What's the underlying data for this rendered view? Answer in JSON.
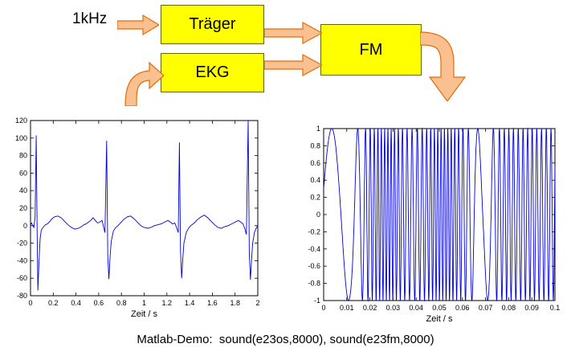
{
  "diagram": {
    "input_label": "1kHz",
    "blocks": [
      {
        "label": "Träger"
      },
      {
        "label": "EKG"
      },
      {
        "label": "FM"
      }
    ],
    "colors": {
      "block_fill": "#FFFF00",
      "block_border": "#666600",
      "arrow_fill": "#FAC090",
      "arrow_stroke": "#E46C0A"
    }
  },
  "caption": {
    "text": "Matlab-Demo:  sound(e23os,8000), sound(e23fm,8000)"
  },
  "chart_data": [
    {
      "type": "line",
      "name": "ekg-signal",
      "xlabel": "Zeit / s",
      "ylabel": "",
      "xlim": [
        0,
        2
      ],
      "ylim": [
        -80,
        120
      ],
      "xticks": [
        0,
        0.2,
        0.4,
        0.6,
        0.8,
        1,
        1.2,
        1.4,
        1.6,
        1.8,
        2
      ],
      "xtick_labels": [
        "0",
        "0.2",
        "0.4",
        "0.6",
        "0.8",
        "1",
        "1.2",
        "1.4",
        "1.6",
        "1.8",
        "2"
      ],
      "yticks": [
        -80,
        -60,
        -40,
        -20,
        0,
        20,
        40,
        60,
        80,
        100,
        120
      ],
      "ytick_labels": [
        "-80",
        "-60",
        "-40",
        "-20",
        "0",
        "20",
        "40",
        "60",
        "80",
        "100",
        "120"
      ],
      "grid": false,
      "line_color": "#0000D8",
      "points": [
        [
          0.0,
          1
        ],
        [
          0.01,
          3
        ],
        [
          0.02,
          0
        ],
        [
          0.03,
          -2
        ],
        [
          0.04,
          10
        ],
        [
          0.05,
          103
        ],
        [
          0.06,
          -30
        ],
        [
          0.065,
          -74
        ],
        [
          0.075,
          -40
        ],
        [
          0.085,
          -15
        ],
        [
          0.095,
          -5
        ],
        [
          0.11,
          -2
        ],
        [
          0.13,
          1
        ],
        [
          0.15,
          2
        ],
        [
          0.17,
          5
        ],
        [
          0.19,
          8
        ],
        [
          0.21,
          10
        ],
        [
          0.24,
          11
        ],
        [
          0.27,
          9
        ],
        [
          0.3,
          5
        ],
        [
          0.33,
          1
        ],
        [
          0.36,
          -2
        ],
        [
          0.39,
          -4
        ],
        [
          0.42,
          -3
        ],
        [
          0.45,
          -1
        ],
        [
          0.47,
          1
        ],
        [
          0.49,
          2
        ],
        [
          0.51,
          4
        ],
        [
          0.53,
          6
        ],
        [
          0.55,
          9
        ],
        [
          0.57,
          6
        ],
        [
          0.59,
          3
        ],
        [
          0.61,
          4
        ],
        [
          0.63,
          6
        ],
        [
          0.64,
          0
        ],
        [
          0.655,
          -8
        ],
        [
          0.67,
          97
        ],
        [
          0.68,
          -35
        ],
        [
          0.69,
          -61
        ],
        [
          0.7,
          -35
        ],
        [
          0.71,
          -18
        ],
        [
          0.73,
          -6
        ],
        [
          0.75,
          -2
        ],
        [
          0.77,
          0
        ],
        [
          0.79,
          3
        ],
        [
          0.82,
          7
        ],
        [
          0.85,
          10
        ],
        [
          0.88,
          11
        ],
        [
          0.91,
          8
        ],
        [
          0.94,
          4
        ],
        [
          0.97,
          0
        ],
        [
          1.0,
          -2
        ],
        [
          1.03,
          -3
        ],
        [
          1.06,
          -2
        ],
        [
          1.09,
          0
        ],
        [
          1.12,
          1
        ],
        [
          1.15,
          2
        ],
        [
          1.18,
          4
        ],
        [
          1.21,
          6
        ],
        [
          1.23,
          4
        ],
        [
          1.25,
          2
        ],
        [
          1.27,
          3
        ],
        [
          1.285,
          -2
        ],
        [
          1.3,
          -8
        ],
        [
          1.31,
          95
        ],
        [
          1.32,
          -30
        ],
        [
          1.33,
          -60
        ],
        [
          1.34,
          -38
        ],
        [
          1.35,
          -20
        ],
        [
          1.37,
          -8
        ],
        [
          1.39,
          -3
        ],
        [
          1.41,
          0
        ],
        [
          1.44,
          3
        ],
        [
          1.47,
          7
        ],
        [
          1.5,
          10
        ],
        [
          1.53,
          12
        ],
        [
          1.56,
          9
        ],
        [
          1.59,
          5
        ],
        [
          1.62,
          1
        ],
        [
          1.65,
          -2
        ],
        [
          1.68,
          -3
        ],
        [
          1.71,
          -1
        ],
        [
          1.74,
          0
        ],
        [
          1.77,
          2
        ],
        [
          1.8,
          4
        ],
        [
          1.83,
          6
        ],
        [
          1.85,
          4
        ],
        [
          1.87,
          2
        ],
        [
          1.885,
          -3
        ],
        [
          1.9,
          -10
        ],
        [
          1.915,
          120
        ],
        [
          1.925,
          -30
        ],
        [
          1.935,
          -62
        ],
        [
          1.945,
          -40
        ],
        [
          1.955,
          -20
        ],
        [
          1.97,
          -8
        ],
        [
          1.985,
          -3
        ],
        [
          2.0,
          0
        ]
      ]
    },
    {
      "type": "line",
      "name": "fm-signal",
      "xlabel": "Zeit / s",
      "ylabel": "",
      "xlim": [
        0,
        0.1
      ],
      "ylim": [
        -1,
        1
      ],
      "xticks": [
        0,
        0.01,
        0.02,
        0.03,
        0.04,
        0.05,
        0.06,
        0.07,
        0.08,
        0.09,
        0.1
      ],
      "xtick_labels": [
        "0",
        "0.01",
        "0.02",
        "0.03",
        "0.04",
        "0.05",
        "0.06",
        "0.07",
        "0.08",
        "0.09",
        "0.1"
      ],
      "yticks": [
        -1,
        -0.8,
        -0.6,
        -0.4,
        -0.2,
        0,
        0.2,
        0.4,
        0.6,
        0.8,
        1
      ],
      "ytick_labels": [
        "-1",
        "-0.8",
        "-0.6",
        "-0.4",
        "-0.2",
        "0",
        "0.2",
        "0.4",
        "0.6",
        "0.8",
        "1"
      ],
      "grid": false,
      "line_color": "#0000D8",
      "signal": {
        "kind": "fm-sine",
        "amplitude": 1,
        "phase0": 0.3,
        "sample_points": 2600,
        "freq_profile": [
          [
            0,
            55
          ],
          [
            0.007,
            65
          ],
          [
            0.012,
            90
          ],
          [
            0.016,
            250
          ],
          [
            0.019,
            500
          ],
          [
            0.024,
            680
          ],
          [
            0.029,
            720
          ],
          [
            0.034,
            520
          ],
          [
            0.039,
            430
          ],
          [
            0.044,
            520
          ],
          [
            0.049,
            700
          ],
          [
            0.055,
            680
          ],
          [
            0.059,
            550
          ],
          [
            0.063,
            350
          ],
          [
            0.066,
            150
          ],
          [
            0.069,
            90
          ],
          [
            0.072,
            180
          ],
          [
            0.075,
            420
          ],
          [
            0.079,
            520
          ],
          [
            0.084,
            470
          ],
          [
            0.089,
            520
          ],
          [
            0.094,
            480
          ],
          [
            0.1,
            500
          ]
        ]
      }
    }
  ]
}
